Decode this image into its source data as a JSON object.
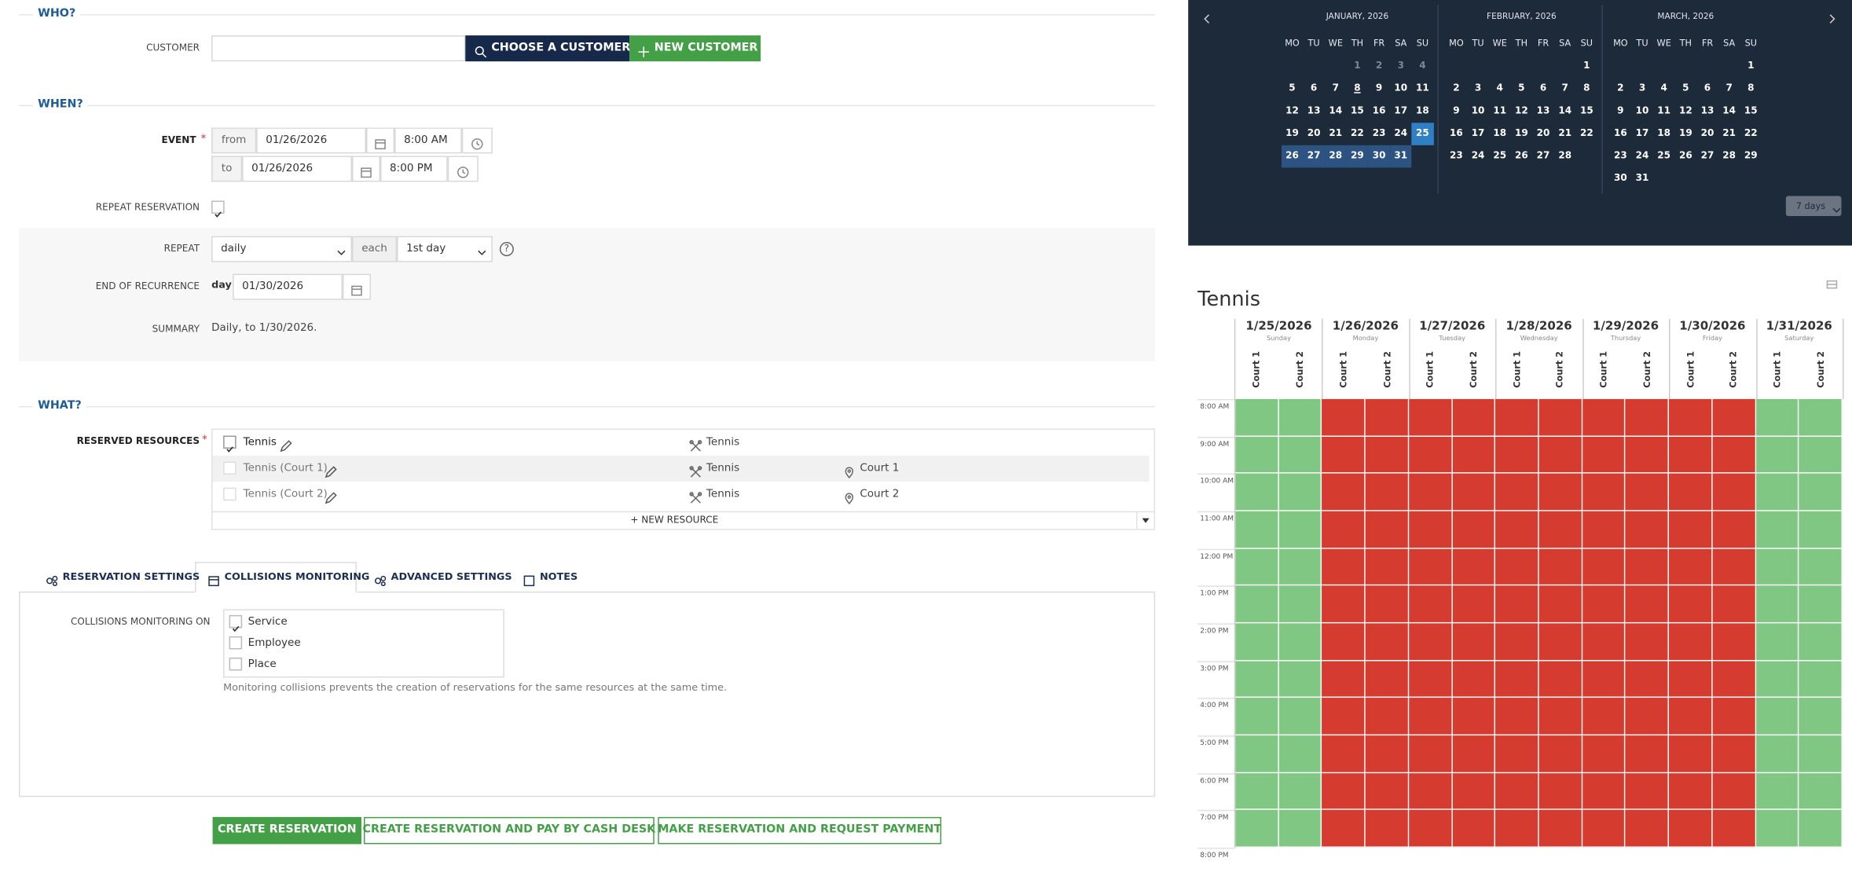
{
  "who": {
    "heading": "WHO?",
    "customer_label": "CUSTOMER",
    "choose_button": "CHOOSE A CUSTOMER",
    "new_button": "NEW CUSTOMER"
  },
  "when": {
    "heading": "WHEN?",
    "event_label": "EVENT",
    "required_mark": "*",
    "from_label": "from",
    "from_date": "01/26/2026",
    "from_time": "8:00 AM",
    "to_label": "to",
    "to_date": "01/26/2026",
    "to_time": "8:00 PM",
    "repeat_reservation_label": "REPEAT RESERVATION",
    "repeat_reservation_checked": true,
    "repeat_label": "REPEAT",
    "repeat_value": "daily",
    "each_label": "each",
    "each_value": "1st day",
    "help": "?",
    "end_label": "END OF RECURRENCE",
    "end_unit": "day",
    "end_date": "01/30/2026",
    "summary_label": "SUMMARY",
    "summary": "Daily, to 1/30/2026."
  },
  "what": {
    "heading": "WHAT?",
    "resources_label": "RESERVED RESOURCES",
    "required_mark": "*",
    "resources": [
      {
        "name": "Tennis",
        "service": "Tennis",
        "checked": true
      },
      {
        "name": "Tennis (Court 1)",
        "service": "Tennis",
        "place": "Court 1",
        "checked": false
      },
      {
        "name": "Tennis (Court 2)",
        "service": "Tennis",
        "place": "Court 2",
        "checked": false
      }
    ],
    "new_resource": "+ NEW RESOURCE"
  },
  "tabs": {
    "items": [
      "RESERVATION SETTINGS",
      "COLLISIONS MONITORING",
      "ADVANCED SETTINGS",
      "NOTES"
    ],
    "active": 1
  },
  "collisions": {
    "label": "COLLISIONS MONITORING ON",
    "options": [
      {
        "label": "Service",
        "checked": true
      },
      {
        "label": "Employee",
        "checked": false
      },
      {
        "label": "Place",
        "checked": false
      }
    ],
    "hint": "Monitoring collisions prevents the creation of reservations for the same resources at the same time."
  },
  "buttons": [
    "CREATE RESERVATION",
    "CREATE RESERVATION AND PAY BY CASH DESK",
    "MAKE RESERVATION AND REQUEST PAYMENT"
  ],
  "calendar": {
    "weekdays": [
      "MO",
      "TU",
      "WE",
      "TH",
      "FR",
      "SA",
      "SU"
    ],
    "range": "7 days",
    "months": [
      {
        "title": "JANUARY, 2026",
        "muted_through": 4,
        "today": 8,
        "selected_from": 25,
        "selected_to": 31,
        "weeks": [
          [
            null,
            null,
            null,
            1,
            2,
            3,
            4
          ],
          [
            5,
            6,
            7,
            8,
            9,
            10,
            11
          ],
          [
            12,
            13,
            14,
            15,
            16,
            17,
            18
          ],
          [
            19,
            20,
            21,
            22,
            23,
            24,
            25
          ],
          [
            26,
            27,
            28,
            29,
            30,
            31,
            null
          ]
        ]
      },
      {
        "title": "FEBRUARY, 2026",
        "weeks": [
          [
            null,
            null,
            null,
            null,
            null,
            null,
            1
          ],
          [
            2,
            3,
            4,
            5,
            6,
            7,
            8
          ],
          [
            9,
            10,
            11,
            12,
            13,
            14,
            15
          ],
          [
            16,
            17,
            18,
            19,
            20,
            21,
            22
          ],
          [
            23,
            24,
            25,
            26,
            27,
            28,
            null
          ]
        ]
      },
      {
        "title": "MARCH, 2026",
        "weeks": [
          [
            null,
            null,
            null,
            null,
            null,
            null,
            1
          ],
          [
            2,
            3,
            4,
            5,
            6,
            7,
            8
          ],
          [
            9,
            10,
            11,
            12,
            13,
            14,
            15
          ],
          [
            16,
            17,
            18,
            19,
            20,
            21,
            22
          ],
          [
            23,
            24,
            25,
            26,
            27,
            28,
            29
          ],
          [
            30,
            31,
            null,
            null,
            null,
            null,
            null
          ]
        ]
      }
    ]
  },
  "schedule": {
    "title": "Tennis",
    "courts": [
      "Court 1",
      "Court 2"
    ],
    "colors": {
      "available": "#81c784",
      "occupied": "#d63b2f"
    },
    "days": [
      {
        "date": "1/25/2026",
        "weekday": "Sunday",
        "status": "available"
      },
      {
        "date": "1/26/2026",
        "weekday": "Monday",
        "status": "occupied"
      },
      {
        "date": "1/27/2026",
        "weekday": "Tuesday",
        "status": "occupied"
      },
      {
        "date": "1/28/2026",
        "weekday": "Wednesday",
        "status": "occupied"
      },
      {
        "date": "1/29/2026",
        "weekday": "Thursday",
        "status": "occupied"
      },
      {
        "date": "1/30/2026",
        "weekday": "Friday",
        "status": "occupied"
      },
      {
        "date": "1/31/2026",
        "weekday": "Saturday",
        "status": "available"
      }
    ],
    "times": [
      "8:00 AM",
      "9:00 AM",
      "10:00 AM",
      "11:00 AM",
      "12:00 PM",
      "1:00 PM",
      "2:00 PM",
      "3:00 PM",
      "4:00 PM",
      "5:00 PM",
      "6:00 PM",
      "7:00 PM",
      "8:00 PM"
    ]
  }
}
